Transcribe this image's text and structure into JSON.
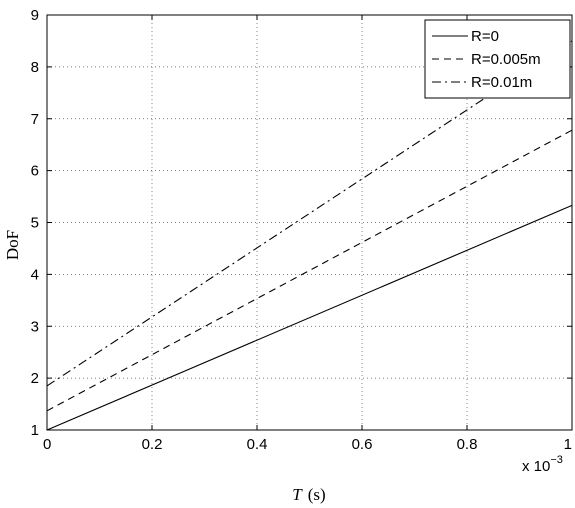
{
  "chart_data": {
    "type": "line",
    "xlabel": "T (s)",
    "xlabel_var": "T",
    "xlabel_unit": "(s)",
    "ylabel": "DoF",
    "x_multiplier_label": "x 10",
    "x_multiplier_exponent": "−3",
    "xlim": [
      0,
      0.001
    ],
    "ylim": [
      1,
      9
    ],
    "x_ticks": [
      0,
      0.0002,
      0.0004,
      0.0006,
      0.0008,
      0.001
    ],
    "x_tick_labels": [
      "0",
      "0.2",
      "0.4",
      "0.6",
      "0.8",
      "1"
    ],
    "y_ticks": [
      1,
      2,
      3,
      4,
      5,
      6,
      7,
      8,
      9
    ],
    "y_tick_labels": [
      "1",
      "2",
      "3",
      "4",
      "5",
      "6",
      "7",
      "8",
      "9"
    ],
    "grid": true,
    "legend_position": "top-right",
    "series": [
      {
        "name": "R=0",
        "line_style": "solid",
        "color": "#000000",
        "x": [
          0,
          0.001
        ],
        "y": [
          1.0,
          5.33
        ]
      },
      {
        "name": "R=0.005m",
        "line_style": "dashed",
        "color": "#000000",
        "x": [
          0,
          0.001
        ],
        "y": [
          1.37,
          6.78
        ]
      },
      {
        "name": "R=0.01m",
        "line_style": "dashdot",
        "color": "#000000",
        "x": [
          0,
          0.001
        ],
        "y": [
          1.85,
          8.5
        ]
      }
    ]
  }
}
